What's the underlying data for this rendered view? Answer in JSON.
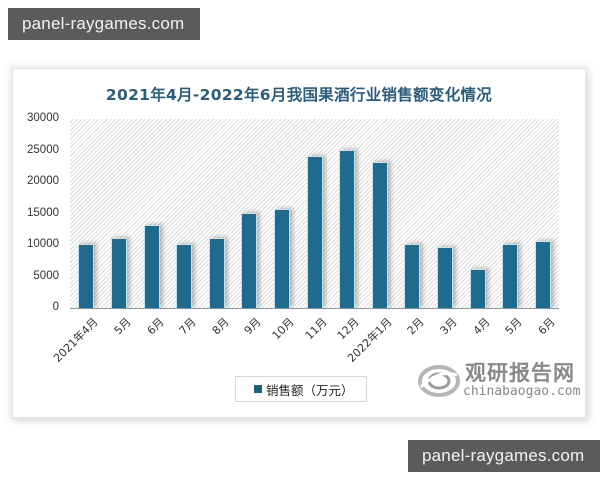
{
  "watermarks": {
    "top": "panel-raygames.com",
    "bottom": "panel-raygames.com"
  },
  "chart": {
    "title": "2021年4月-2022年6月我国果酒行业销售额变化情况",
    "legend_label": "销售额（万元）",
    "bar_color": "#1f6b8e",
    "y_ticks": [
      "30000",
      "25000",
      "20000",
      "15000",
      "10000",
      "5000",
      "0"
    ]
  },
  "logo": {
    "cn": "观研报告网",
    "en": "chinabaogao.com"
  },
  "chart_data": {
    "type": "bar",
    "title": "2021年4月-2022年6月我国果酒行业销售额变化情况",
    "xlabel": "",
    "ylabel": "",
    "ylim": [
      0,
      30000
    ],
    "y_ticks": [
      0,
      5000,
      10000,
      15000,
      20000,
      25000,
      30000
    ],
    "grid": false,
    "legend_position": "bottom",
    "categories": [
      "2021年4月",
      "5月",
      "6月",
      "7月",
      "8月",
      "9月",
      "10月",
      "11月",
      "12月",
      "2022年1月",
      "2月",
      "3月",
      "4月",
      "5月",
      "6月"
    ],
    "series": [
      {
        "name": "销售额（万元）",
        "values": [
          10000,
          11000,
          13000,
          10000,
          11000,
          15000,
          15500,
          24000,
          25000,
          23000,
          10000,
          9500,
          6000,
          10000,
          10500
        ]
      }
    ]
  }
}
